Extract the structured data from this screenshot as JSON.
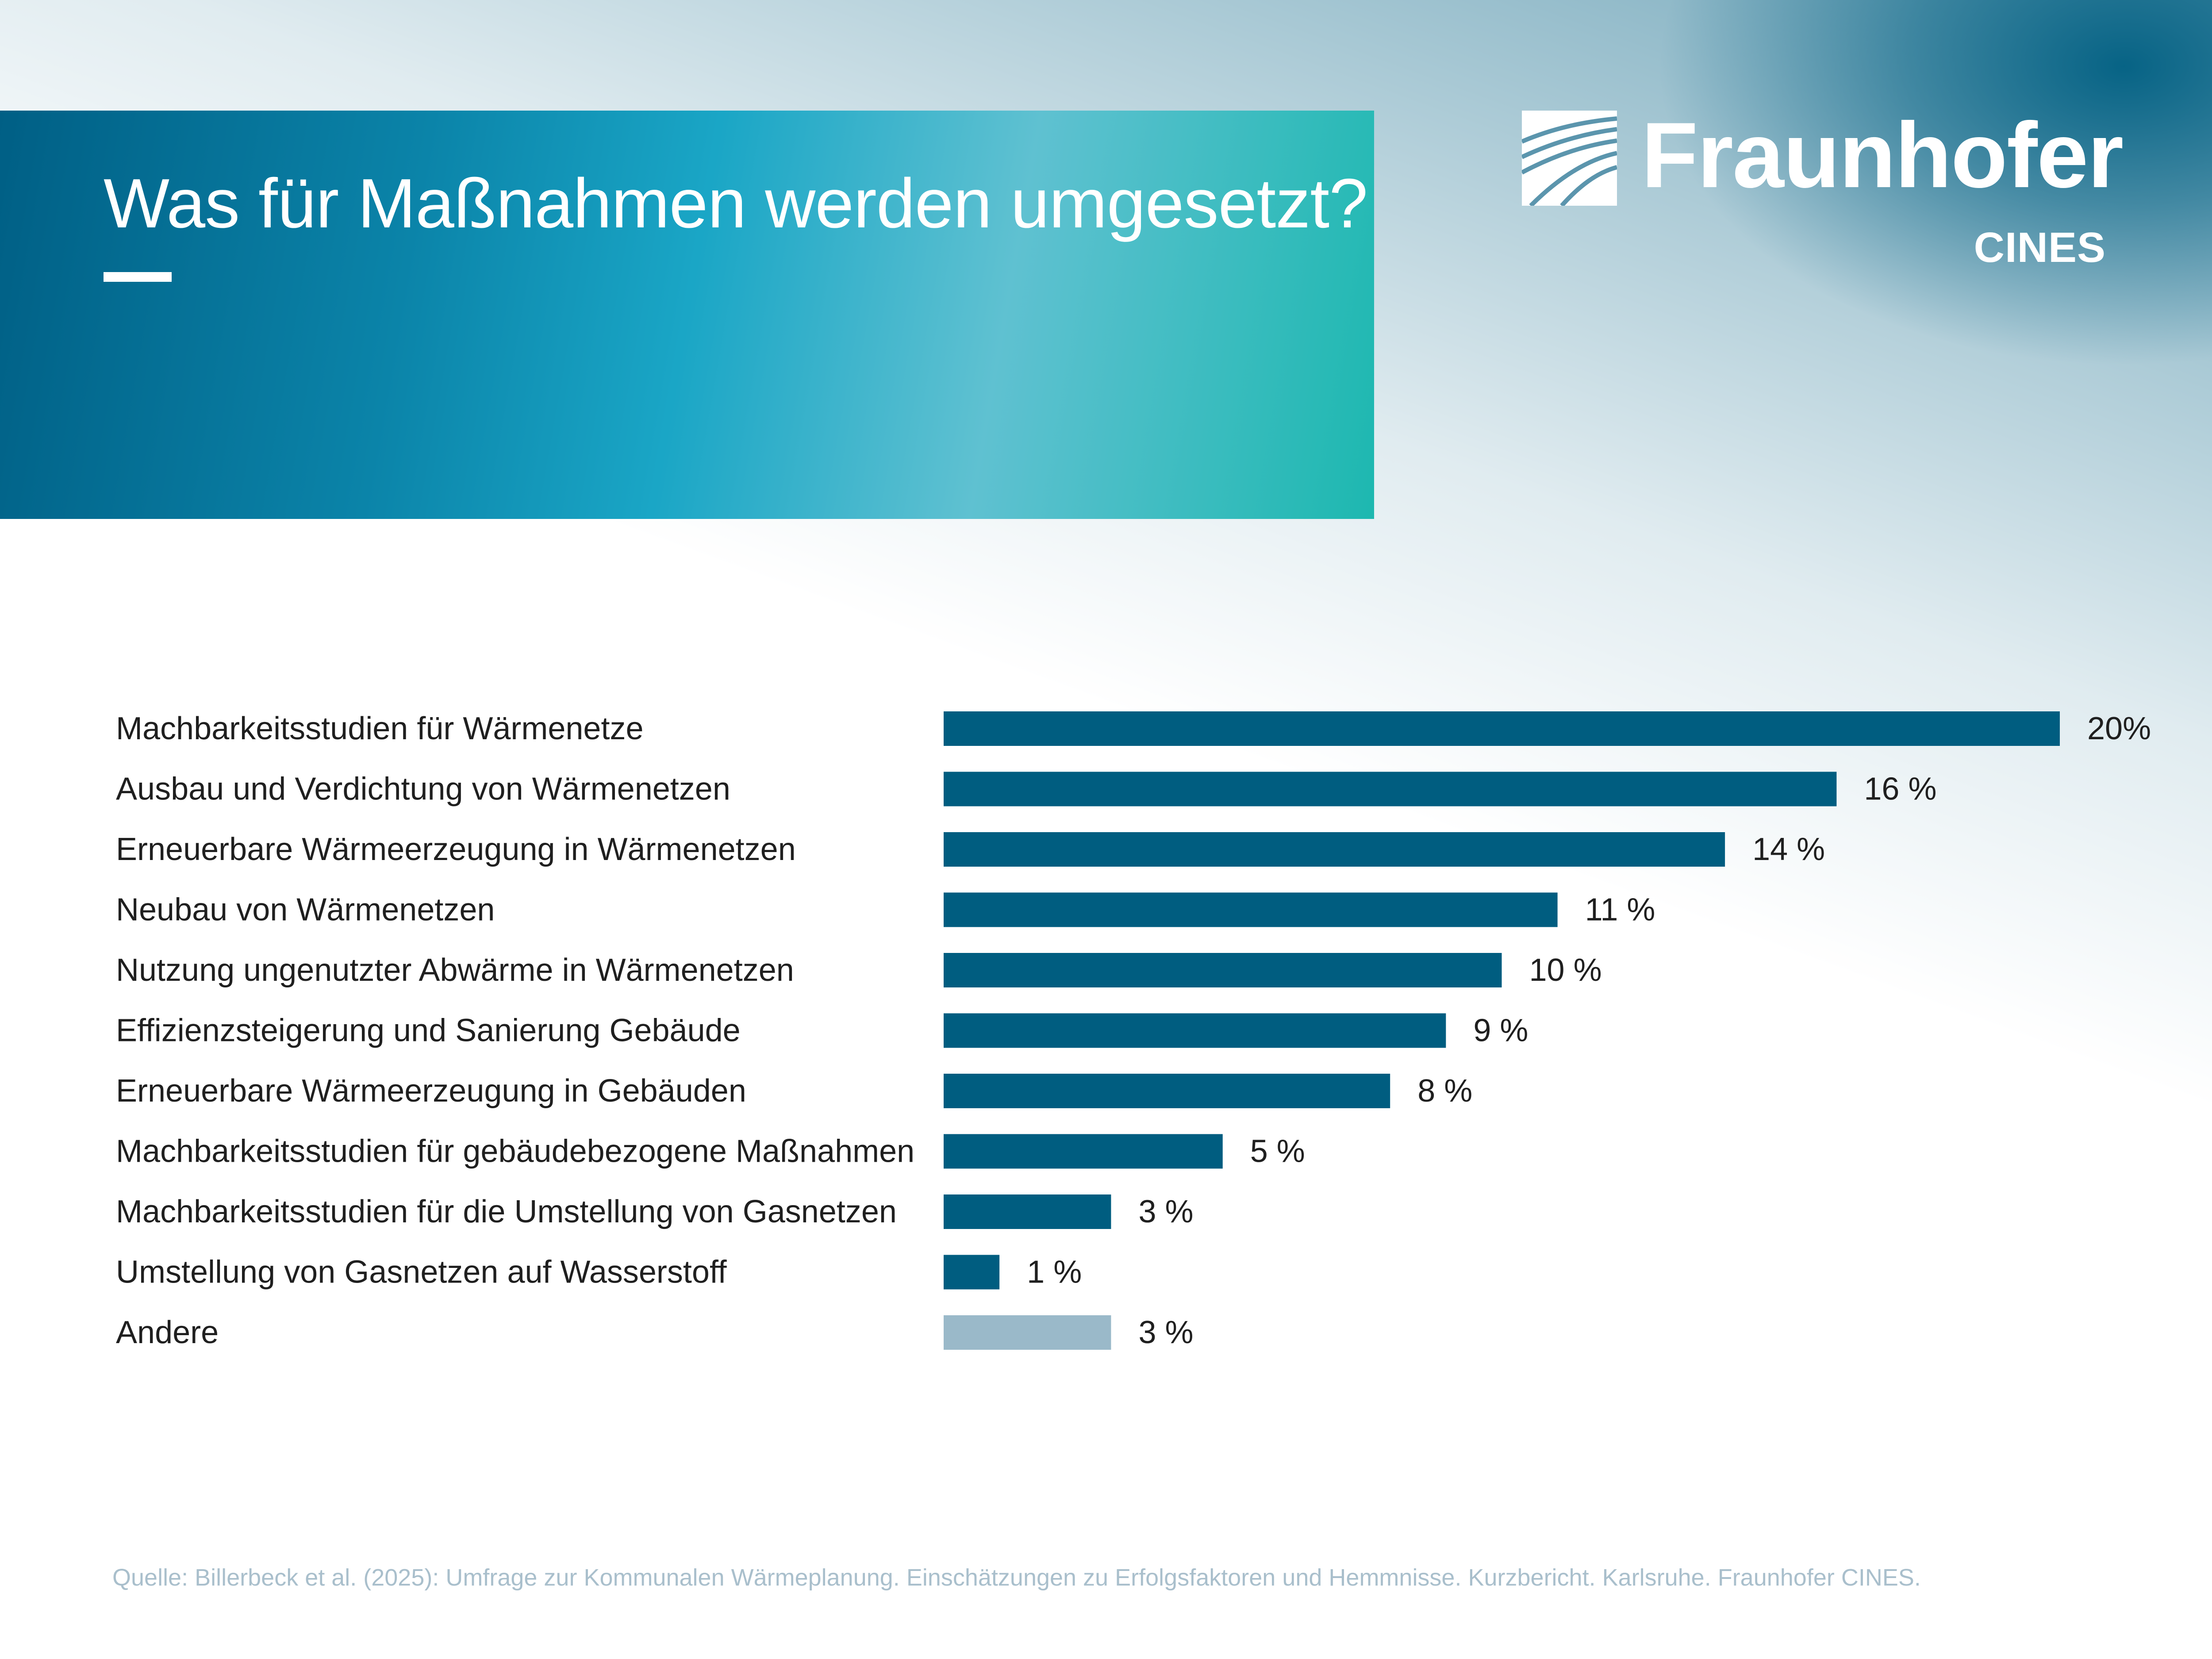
{
  "header": {
    "title": "Was für Maßnahmen werden umgesetzt?"
  },
  "logo": {
    "name": "Fraunhofer",
    "sub": "CINES"
  },
  "colors": {
    "bar": "#005d80",
    "bar_other": "#9ab9c9",
    "label": "#1f1f1f"
  },
  "chart_data": {
    "type": "bar",
    "orientation": "horizontal",
    "categories": [
      "Machbarkeitsstudien für Wärmenetze",
      "Ausbau und Verdichtung von Wärmenetzen",
      "Erneuerbare Wärmeerzeugung in Wärmenetzen",
      "Neubau von Wärmenetzen",
      "Nutzung ungenutzter Abwärme in Wärmenetzen",
      "Effizienzsteigerung und Sanierung Gebäude",
      "Erneuerbare Wärmeerzeugung in Gebäuden",
      "Machbarkeitsstudien für gebäudebezogene Maßnahmen",
      "Machbarkeitsstudien für die Umstellung von Gasnetzen",
      "Umstellung von Gasnetzen auf Wasserstoff",
      "Andere"
    ],
    "values": [
      20,
      16,
      14,
      11,
      10,
      9,
      8,
      5,
      3,
      1,
      3
    ],
    "value_labels": [
      "20%",
      "16 %",
      "14 %",
      "11 %",
      "10 %",
      "9 %",
      "8 %",
      "5 %",
      "3 %",
      "1 %",
      "3 %"
    ],
    "highlight_last": true,
    "xlim": [
      0,
      20
    ],
    "grid": false,
    "title": "",
    "xlabel": "",
    "ylabel": ""
  },
  "footer": {
    "source": "Quelle: Billerbeck et al. (2025): Umfrage zur Kommunalen Wärmeplanung. Einschätzungen zu Erfolgsfaktoren und Hemmnisse. Kurzbericht. Karlsruhe. Fraunhofer CINES."
  }
}
